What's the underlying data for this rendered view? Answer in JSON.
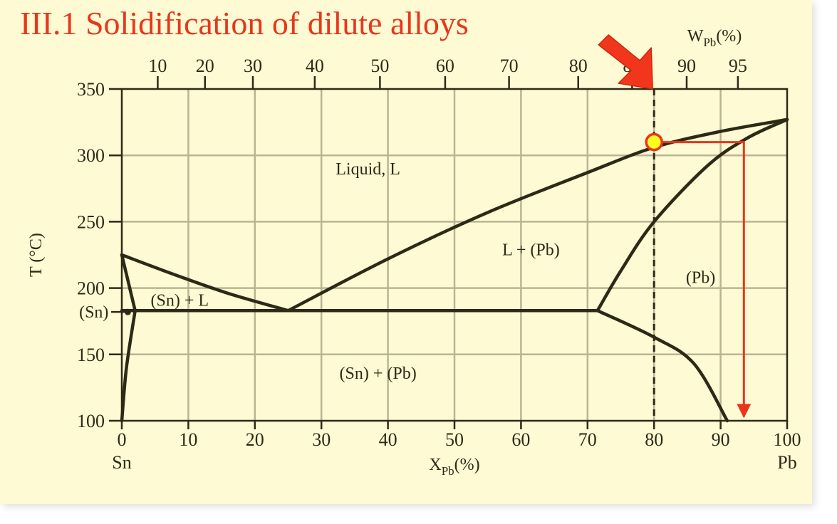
{
  "slide": {
    "title": "III.1 Solidification of dilute alloys"
  },
  "chart_data": {
    "type": "phase-diagram",
    "title": "III.1 Solidification of dilute alloys",
    "xlabel_bottom": "X",
    "xlabel_bottom_sub": "Pb",
    "xlabel_bottom_unit": "(%)",
    "xlabel_top": "W",
    "xlabel_top_sub": "Pb",
    "xlabel_top_unit": "(%)",
    "ylabel": "T (°C)",
    "xlim": [
      0,
      100
    ],
    "ylim": [
      100,
      350
    ],
    "x_ticks": [
      0,
      10,
      20,
      30,
      40,
      50,
      60,
      70,
      80,
      90,
      100
    ],
    "y_ticks": [
      100,
      150,
      200,
      250,
      300,
      350
    ],
    "top_ticks": [
      {
        "label": "10",
        "x": 5.4
      },
      {
        "label": "20",
        "x": 12.5
      },
      {
        "label": "30",
        "x": 19.7
      },
      {
        "label": "40",
        "x": 29.0
      },
      {
        "label": "50",
        "x": 38.8
      },
      {
        "label": "60",
        "x": 48.6
      },
      {
        "label": "70",
        "x": 58.2
      },
      {
        "label": "80",
        "x": 68.6
      },
      {
        "label": "85",
        "x": 76.7
      },
      {
        "label": "90",
        "x": 84.9
      },
      {
        "label": "95",
        "x": 92.6
      }
    ],
    "end_labels": {
      "left": "Sn",
      "right": "Pb"
    },
    "grid": true,
    "phase_boundaries": [
      {
        "name": "liquidus Sn side",
        "points": [
          [
            0,
            225
          ],
          [
            8,
            210
          ],
          [
            16,
            196
          ],
          [
            25,
            183
          ]
        ]
      },
      {
        "name": "liquidus Pb side",
        "points": [
          [
            25,
            183
          ],
          [
            40,
            222
          ],
          [
            55,
            257
          ],
          [
            70,
            287
          ],
          [
            80,
            306
          ],
          [
            90,
            318
          ],
          [
            100,
            327
          ]
        ]
      },
      {
        "name": "solidus Pb side",
        "points": [
          [
            71.5,
            183
          ],
          [
            75,
            213
          ],
          [
            80,
            250
          ],
          [
            88,
            292
          ],
          [
            94,
            313
          ],
          [
            100,
            327
          ]
        ]
      },
      {
        "name": "solvus Pb side",
        "points": [
          [
            71.5,
            183
          ],
          [
            80,
            163
          ],
          [
            86,
            143
          ],
          [
            91,
            100
          ]
        ]
      },
      {
        "name": "eutectic line",
        "points": [
          [
            0,
            183
          ],
          [
            71.5,
            183
          ]
        ]
      },
      {
        "name": "Sn solidus",
        "points": [
          [
            0,
            225
          ],
          [
            2,
            183
          ]
        ]
      },
      {
        "name": "Sn solvus",
        "points": [
          [
            2,
            183
          ],
          [
            0.7,
            140
          ],
          [
            0,
            100
          ]
        ]
      }
    ],
    "phase_labels": [
      {
        "text": "Liquid, L",
        "x": 37,
        "y": 290
      },
      {
        "text": "L + (Pb)",
        "x": 61.5,
        "y": 229
      },
      {
        "text": "(Pb)",
        "x": 87,
        "y": 208
      },
      {
        "text": "(Sn) + L",
        "x": 8.7,
        "y": 191
      },
      {
        "text": "(Sn) + (Pb)",
        "x": 38.5,
        "y": 136
      },
      {
        "text": "(Sn)",
        "x": -4.2,
        "y": 182
      }
    ],
    "annotations": {
      "alloy_line_x": 80,
      "marker": {
        "x": 80,
        "y": 310
      },
      "path": [
        [
          80,
          310
        ],
        [
          93.5,
          310
        ],
        [
          93.5,
          103
        ]
      ],
      "colors": {
        "alloy_line": "#2c2a17",
        "marker_fill": "#ffff22",
        "marker_stroke": "#e8361c",
        "arrow": "#e8361c"
      }
    }
  }
}
